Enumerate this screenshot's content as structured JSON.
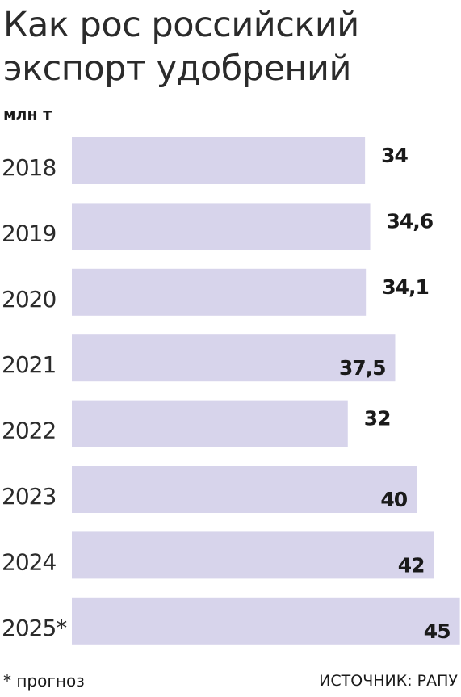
{
  "title": "Как рос российский экспорт удобрений",
  "unit": "млн т",
  "footnote": "* прогноз",
  "source": "ИСТОЧНИК: РАПУ",
  "colors": {
    "bar": "#d7d4eb",
    "text": "#1a1a1a"
  },
  "chart_data": {
    "type": "bar",
    "orientation": "horizontal",
    "categories": [
      "2018",
      "2019",
      "2020",
      "2021",
      "2022",
      "2023",
      "2024",
      "2025*"
    ],
    "values": [
      34,
      34.6,
      34.1,
      37.5,
      32,
      40,
      42,
      45
    ],
    "value_labels": [
      "34",
      "34,6",
      "34,1",
      "37,5",
      "32",
      "40",
      "42",
      "45"
    ],
    "ylabel": "млн т",
    "grid": false,
    "legend": "none"
  }
}
